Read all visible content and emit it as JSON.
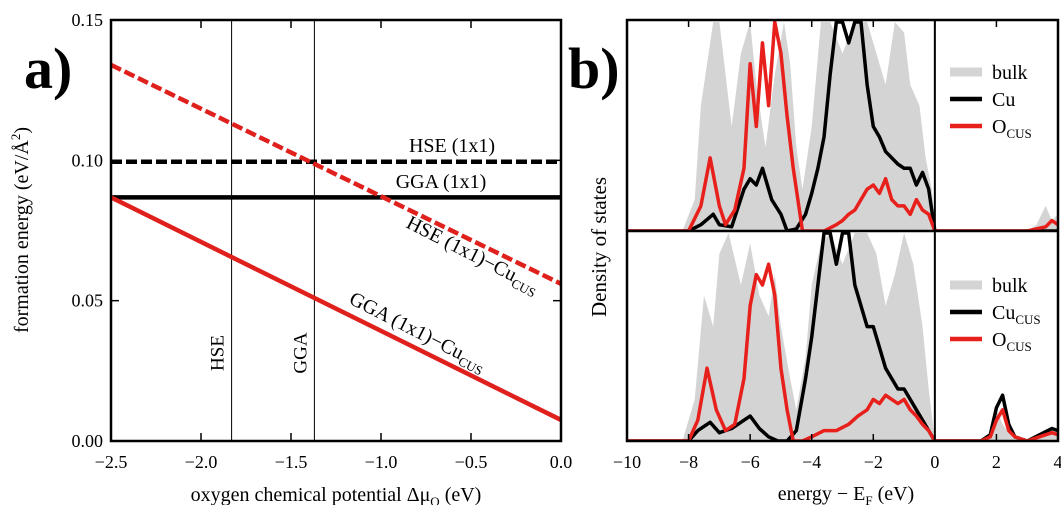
{
  "panel_a": {
    "label": "a)",
    "chart_data": {
      "type": "line",
      "xlabel_main": "oxygen chemical potential Δμ",
      "xlabel_sub": "O",
      "xlabel_tail": " (eV)",
      "ylabel_main": "formation energy (eV/Å",
      "ylabel_sup": "2",
      "ylabel_tail": ")",
      "xlim": [
        -2.5,
        0.0
      ],
      "ylim": [
        0.0,
        0.15
      ],
      "xticks": [
        -2.5,
        -2.0,
        -1.5,
        -1.0,
        -0.5,
        0.0
      ],
      "xtick_labels": [
        "−2.5",
        "−2.0",
        "−1.5",
        "−1.0",
        "−0.5",
        "0.0"
      ],
      "yticks": [
        0.0,
        0.05,
        0.1,
        0.15
      ],
      "ytick_labels": [
        "0.00",
        "0.05",
        "0.10",
        "0.15"
      ],
      "vlines": [
        {
          "name": "HSE",
          "x": -1.83
        },
        {
          "name": "GGA",
          "x": -1.37
        }
      ],
      "series": [
        {
          "name": "HSE (1x1)",
          "color": "#000000",
          "dashed": true,
          "x": [
            -2.5,
            0.0
          ],
          "y": [
            0.0995,
            0.0995
          ]
        },
        {
          "name": "GGA (1x1)",
          "color": "#000000",
          "dashed": false,
          "x": [
            -2.5,
            0.0
          ],
          "y": [
            0.0868,
            0.0868
          ]
        },
        {
          "name": "HSE (1x1)−Cu",
          "sub": "CUS",
          "color": "#e0201c",
          "dashed": true,
          "x": [
            -2.5,
            0.0
          ],
          "y": [
            0.134,
            0.056
          ]
        },
        {
          "name": "GGA (1x1)−Cu",
          "sub": "CUS",
          "color": "#e0201c",
          "dashed": false,
          "x": [
            -2.5,
            0.0
          ],
          "y": [
            0.0868,
            0.0075
          ]
        }
      ]
    }
  },
  "panel_b": {
    "label": "b)",
    "chart_data": {
      "type": "area",
      "ylabel": "Density of states",
      "xlabel_main": "energy − E",
      "xlabel_sub": "F",
      "xlabel_tail": " (eV)",
      "xlim": [
        -10,
        4
      ],
      "xticks": [
        -10,
        -8,
        -6,
        -4,
        -2,
        0,
        2,
        4
      ],
      "xtick_labels": [
        "−10",
        "−8",
        "−6",
        "−4",
        "−2",
        "0",
        "2",
        "4"
      ],
      "fermi_level": 0,
      "colors": {
        "bulk": "#d4d4d4",
        "cu": "#000000",
        "o": "#e8201c"
      },
      "top": {
        "legend": [
          {
            "text": "bulk",
            "sub": ""
          },
          {
            "text": "Cu",
            "sub": ""
          },
          {
            "text": "O",
            "sub": "CUS"
          }
        ],
        "bulk": {
          "x": [
            -8.2,
            -7.8,
            -7.6,
            -7.2,
            -7.0,
            -6.8,
            -6.6,
            -6.3,
            -6.0,
            -5.8,
            -5.5,
            -5.2,
            -4.9,
            -4.7,
            -4.5,
            -4.3,
            -4.0,
            -3.7,
            -3.4,
            -3.0,
            -2.6,
            -2.2,
            -1.9,
            -1.6,
            -1.3,
            -1.0,
            -0.8,
            -0.5,
            -0.3,
            -0.1,
            0.0,
            0.4,
            0.8,
            1.2,
            1.5,
            1.8,
            2.0,
            2.2,
            2.5,
            2.8,
            3.0,
            3.3,
            3.6,
            3.8,
            4.0
          ],
          "y": [
            0.0,
            0.15,
            0.6,
            1.0,
            1.0,
            0.75,
            0.5,
            0.85,
            1.0,
            0.7,
            0.4,
            0.75,
            1.0,
            0.8,
            0.4,
            0.2,
            0.5,
            1.0,
            1.0,
            0.85,
            1.0,
            1.0,
            0.85,
            0.7,
            1.0,
            0.95,
            0.7,
            0.6,
            0.35,
            0.2,
            0.0,
            0.0,
            0.0,
            0.0,
            0.0,
            0.0,
            0.0,
            0.0,
            0.0,
            0.0,
            0.0,
            0.03,
            0.12,
            0.05,
            0.08
          ]
        },
        "cu": {
          "x": [
            -10,
            -8.0,
            -7.6,
            -7.2,
            -7.0,
            -6.6,
            -6.2,
            -6.0,
            -5.8,
            -5.6,
            -5.3,
            -5.0,
            -4.8,
            -4.5,
            -4.2,
            -4.0,
            -3.8,
            -3.6,
            -3.4,
            -3.2,
            -3.0,
            -2.8,
            -2.6,
            -2.4,
            -2.2,
            -2.0,
            -1.8,
            -1.6,
            -1.4,
            -1.2,
            -1.0,
            -0.8,
            -0.6,
            -0.4,
            -0.2,
            0.0,
            0.4,
            1.0,
            2.0,
            3.0,
            4.0
          ],
          "y": [
            0.0,
            0.0,
            0.03,
            0.08,
            0.03,
            0.02,
            0.2,
            0.25,
            0.22,
            0.3,
            0.15,
            0.08,
            0.0,
            0.01,
            0.08,
            0.18,
            0.3,
            0.45,
            0.75,
            1.0,
            1.0,
            0.9,
            1.0,
            1.0,
            0.7,
            0.5,
            0.45,
            0.38,
            0.35,
            0.32,
            0.3,
            0.3,
            0.22,
            0.28,
            0.2,
            0.0,
            0.0,
            0.0,
            0.0,
            0.0,
            0.0
          ]
        },
        "o": {
          "x": [
            -10,
            -8.0,
            -7.6,
            -7.3,
            -7.0,
            -6.8,
            -6.5,
            -6.2,
            -6.0,
            -5.8,
            -5.6,
            -5.4,
            -5.2,
            -5.0,
            -4.8,
            -4.6,
            -4.3,
            -4.0,
            -3.6,
            -3.2,
            -3.0,
            -2.8,
            -2.6,
            -2.4,
            -2.2,
            -2.0,
            -1.8,
            -1.6,
            -1.4,
            -1.2,
            -1.0,
            -0.8,
            -0.6,
            -0.4,
            -0.2,
            0.0,
            0.2,
            1.0,
            2.0,
            3.0,
            3.6,
            3.8,
            4.0
          ],
          "y": [
            0.0,
            0.0,
            0.12,
            0.35,
            0.12,
            0.03,
            0.1,
            0.3,
            0.8,
            0.5,
            0.9,
            0.6,
            1.0,
            0.85,
            0.55,
            0.3,
            0.0,
            0.0,
            0.0,
            0.03,
            0.05,
            0.08,
            0.1,
            0.15,
            0.2,
            0.22,
            0.18,
            0.25,
            0.15,
            0.12,
            0.12,
            0.08,
            0.15,
            0.1,
            0.08,
            0.0,
            0.0,
            0.0,
            0.0,
            0.0,
            0.02,
            0.05,
            0.03
          ]
        }
      },
      "bottom": {
        "legend": [
          {
            "text": "bulk",
            "sub": ""
          },
          {
            "text": "Cu",
            "sub": "CUS"
          },
          {
            "text": "O",
            "sub": "CUS"
          }
        ],
        "bulk": {
          "x": [
            -8.2,
            -7.8,
            -7.5,
            -7.2,
            -7.0,
            -6.7,
            -6.3,
            -6.0,
            -5.7,
            -5.4,
            -5.2,
            -5.0,
            -4.7,
            -4.5,
            -4.2,
            -4.0,
            -3.7,
            -3.4,
            -3.0,
            -2.6,
            -2.2,
            -1.9,
            -1.6,
            -1.3,
            -1.0,
            -0.7,
            -0.4,
            -0.2,
            0.0,
            0.5,
            1.0,
            1.5,
            1.8,
            2.0,
            2.2,
            2.5,
            3.0,
            3.4,
            3.8,
            4.0
          ],
          "y": [
            0.0,
            0.2,
            0.7,
            0.55,
            0.9,
            1.0,
            0.75,
            0.95,
            0.7,
            0.6,
            0.8,
            0.55,
            0.3,
            0.15,
            0.4,
            0.75,
            0.95,
            1.0,
            0.85,
            1.0,
            1.0,
            0.9,
            0.65,
            0.8,
            1.0,
            0.85,
            0.55,
            0.25,
            0.0,
            0.0,
            0.0,
            0.0,
            0.02,
            0.15,
            0.08,
            0.02,
            0.0,
            0.03,
            0.07,
            0.05
          ]
        },
        "cu": {
          "x": [
            -10,
            -8.0,
            -7.7,
            -7.3,
            -7.0,
            -6.6,
            -6.2,
            -6.0,
            -5.7,
            -5.4,
            -5.1,
            -4.8,
            -4.5,
            -4.2,
            -4.0,
            -3.8,
            -3.6,
            -3.4,
            -3.2,
            -3.0,
            -2.8,
            -2.6,
            -2.4,
            -2.2,
            -2.0,
            -1.8,
            -1.6,
            -1.4,
            -1.2,
            -1.0,
            -0.8,
            -0.6,
            -0.4,
            -0.2,
            0.0,
            1.5,
            1.8,
            2.0,
            2.2,
            2.4,
            2.6,
            3.0,
            3.4,
            3.8,
            4.0
          ],
          "y": [
            0.0,
            0.0,
            0.05,
            0.09,
            0.04,
            0.06,
            0.1,
            0.12,
            0.06,
            0.02,
            0.0,
            0.0,
            0.05,
            0.3,
            0.5,
            0.75,
            1.0,
            1.0,
            0.85,
            1.0,
            1.0,
            0.75,
            0.65,
            0.55,
            0.55,
            0.45,
            0.35,
            0.3,
            0.25,
            0.25,
            0.2,
            0.15,
            0.1,
            0.05,
            0.0,
            0.0,
            0.03,
            0.16,
            0.22,
            0.08,
            0.02,
            0.0,
            0.03,
            0.06,
            0.05
          ]
        },
        "o": {
          "x": [
            -10,
            -8.0,
            -7.7,
            -7.4,
            -7.1,
            -6.8,
            -6.5,
            -6.2,
            -6.0,
            -5.8,
            -5.6,
            -5.4,
            -5.2,
            -5.0,
            -4.8,
            -4.6,
            -4.3,
            -4.0,
            -3.6,
            -3.2,
            -2.8,
            -2.5,
            -2.2,
            -2.0,
            -1.8,
            -1.6,
            -1.4,
            -1.2,
            -1.0,
            -0.8,
            -0.6,
            -0.4,
            -0.2,
            0.0,
            1.5,
            1.8,
            2.0,
            2.2,
            2.4,
            2.6,
            3.0,
            3.4,
            3.8,
            4.0
          ],
          "y": [
            0.0,
            0.0,
            0.1,
            0.35,
            0.15,
            0.05,
            0.08,
            0.3,
            0.65,
            0.8,
            0.75,
            0.85,
            0.7,
            0.35,
            0.15,
            0.0,
            0.0,
            0.02,
            0.05,
            0.05,
            0.08,
            0.12,
            0.15,
            0.2,
            0.18,
            0.22,
            0.2,
            0.18,
            0.2,
            0.15,
            0.12,
            0.08,
            0.05,
            0.0,
            0.0,
            0.02,
            0.1,
            0.15,
            0.05,
            0.02,
            0.0,
            0.02,
            0.04,
            0.03
          ]
        }
      }
    }
  }
}
